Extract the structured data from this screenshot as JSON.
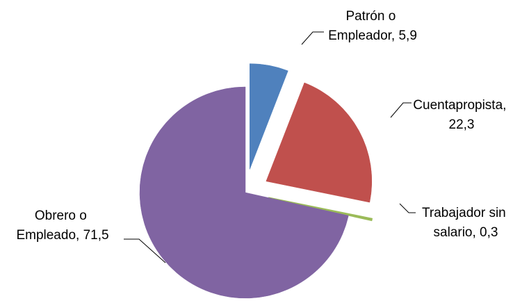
{
  "chart_data": {
    "type": "pie",
    "exploded": true,
    "categories": [
      "Patrón o Empleador",
      "Cuentapropista",
      "Trabajador sin salario",
      "Obrero o Empleado"
    ],
    "values": [
      5.9,
      22.3,
      0.3,
      71.5
    ],
    "colors": [
      "#4F81BD",
      "#C0504D",
      "#9BBB59",
      "#8064A2"
    ],
    "data_labels": [
      {
        "line1": "Patrón o",
        "line2": "Empleador, 5,9"
      },
      {
        "line1": "Cuentapropista,",
        "line2": "22,3"
      },
      {
        "line1": "Trabajador sin",
        "line2": "salario, 0,3"
      },
      {
        "line1": "Obrero o",
        "line2": "Empleado, 71,5"
      }
    ],
    "title": "",
    "legend": "none"
  }
}
